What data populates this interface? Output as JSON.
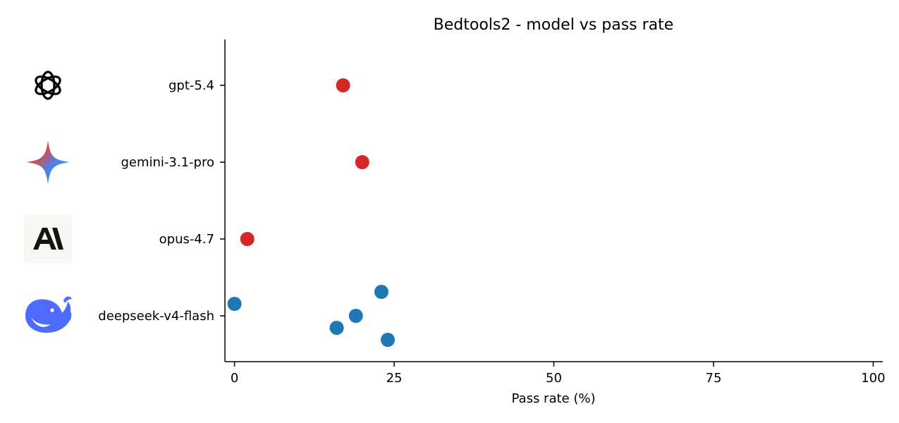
{
  "colors": {
    "frontier": "#d62728",
    "open": "#1f77b4"
  },
  "chart_data": {
    "type": "scatter",
    "title": "Bedtools2 - model vs pass rate",
    "xlabel": "Pass rate (%)",
    "ylabel": "",
    "xlim": [
      -1.5,
      101.5
    ],
    "xticks": [
      "0",
      "25",
      "50",
      "75",
      "100"
    ],
    "grid": false,
    "legend": "none",
    "categories": [
      {
        "label": "gpt-5.4",
        "icon": "openai-logo-icon"
      },
      {
        "label": "gemini-3.1-pro",
        "icon": "gemini-sparkle-icon"
      },
      {
        "label": "opus-4.7",
        "icon": "anthropic-logo-icon"
      },
      {
        "label": "deepseek-v4-flash",
        "icon": "deepseek-whale-icon"
      }
    ],
    "points": [
      {
        "model": "gpt-5.4",
        "x": 17,
        "color_key": "frontier"
      },
      {
        "model": "gemini-3.1-pro",
        "x": 20,
        "color_key": "frontier"
      },
      {
        "model": "opus-4.7",
        "x": 2,
        "color_key": "frontier"
      },
      {
        "model": "deepseek-v4-flash",
        "x": 23,
        "color_key": "open"
      },
      {
        "model": "deepseek-v4-flash",
        "x": 0,
        "color_key": "open"
      },
      {
        "model": "deepseek-v4-flash",
        "x": 19,
        "color_key": "open"
      },
      {
        "model": "deepseek-v4-flash",
        "x": 16,
        "color_key": "open"
      },
      {
        "model": "deepseek-v4-flash",
        "x": 24,
        "color_key": "open"
      }
    ]
  }
}
